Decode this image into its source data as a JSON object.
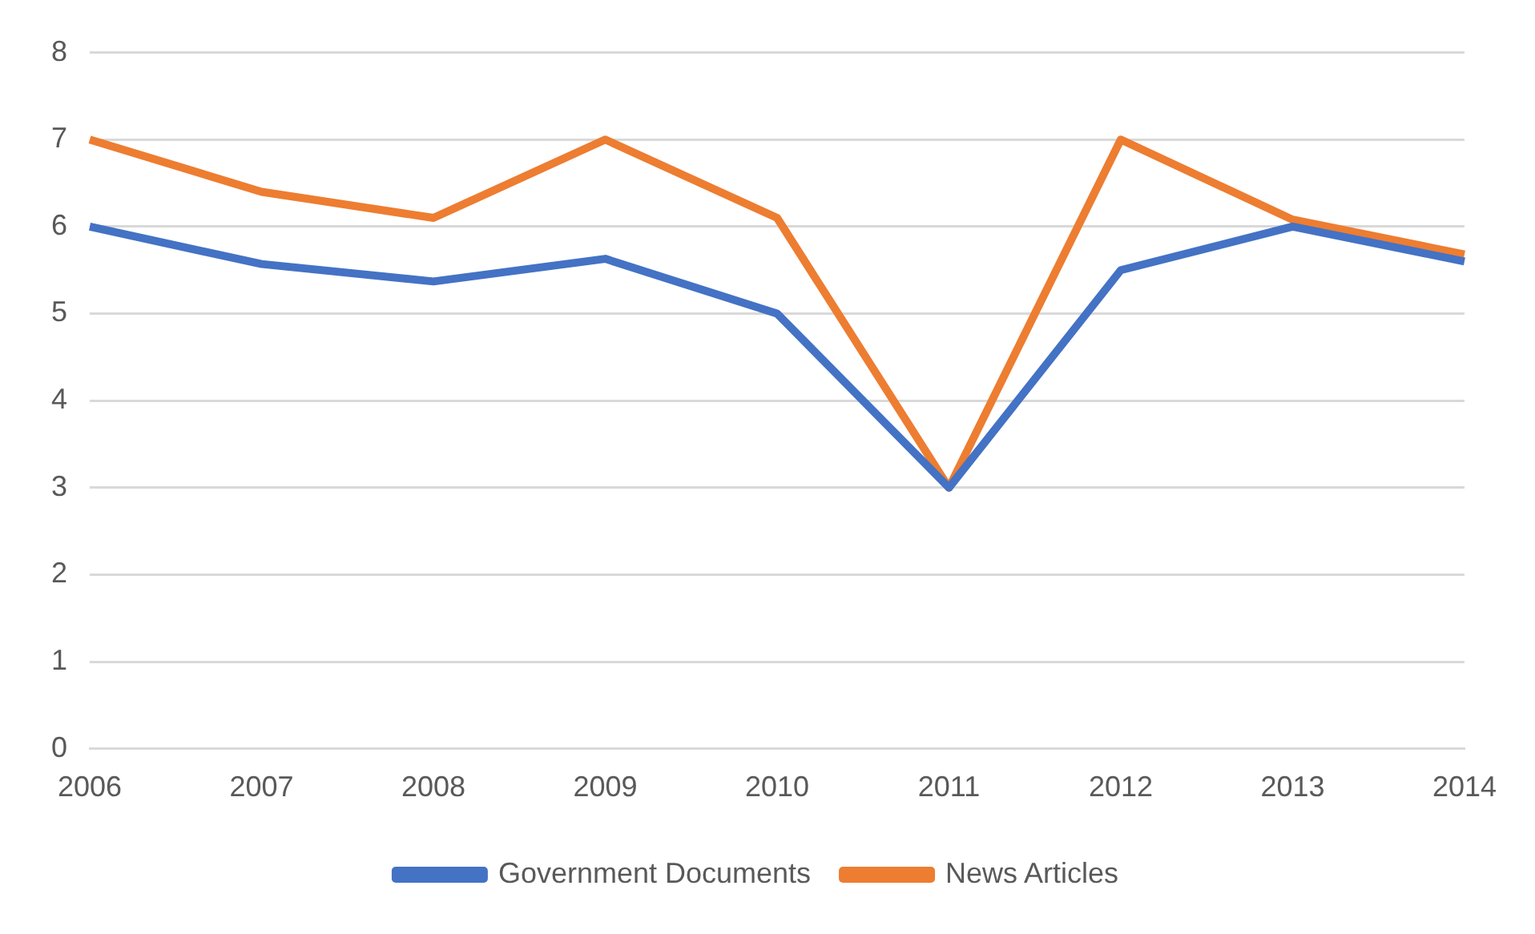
{
  "chart_data": {
    "type": "line",
    "categories": [
      "2006",
      "2007",
      "2008",
      "2009",
      "2010",
      "2011",
      "2012",
      "2013",
      "2014"
    ],
    "series": [
      {
        "name": "Government Documents",
        "color": "#4472c4",
        "values": [
          6.0,
          5.57,
          5.37,
          5.63,
          5.0,
          3.0,
          5.5,
          6.0,
          5.6
        ]
      },
      {
        "name": "News Articles",
        "color": "#ed7d31",
        "values": [
          7.0,
          6.4,
          6.1,
          7.0,
          6.1,
          3.0,
          7.0,
          6.08,
          5.68
        ]
      }
    ],
    "ylim": [
      0,
      8
    ],
    "yticks": [
      0,
      1,
      2,
      3,
      4,
      5,
      6,
      7,
      8
    ],
    "grid": "y",
    "legend": "bottom",
    "marker": "none",
    "line_style": "solid"
  }
}
